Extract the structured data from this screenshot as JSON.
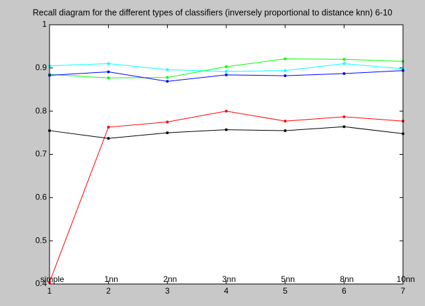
{
  "chart_data": {
    "type": "line",
    "title": "Recall diagram for the different types of classifiers (inversely proportional to distance knn) 6-10",
    "x": [
      1,
      2,
      3,
      4,
      5,
      6,
      7
    ],
    "point_labels": [
      "simple",
      "1nn",
      "2nn",
      "3nn",
      "5nn",
      "8nn",
      "10nn"
    ],
    "series": [
      {
        "color": "#00ffff",
        "values": [
          0.905,
          0.91,
          0.896,
          0.892,
          0.894,
          0.91,
          0.898
        ]
      },
      {
        "color": "#00ff00",
        "values": [
          0.885,
          0.877,
          0.878,
          0.903,
          0.921,
          0.92,
          0.915
        ]
      },
      {
        "color": "#0000ff",
        "values": [
          0.883,
          0.891,
          0.869,
          0.884,
          0.882,
          0.887,
          0.894
        ]
      },
      {
        "color": "#ff0000",
        "values": [
          0.404,
          0.763,
          0.775,
          0.8,
          0.777,
          0.787,
          0.777
        ]
      },
      {
        "color": "#000000",
        "values": [
          0.755,
          0.737,
          0.75,
          0.757,
          0.755,
          0.764,
          0.748
        ]
      }
    ],
    "xlim": [
      1,
      7
    ],
    "xticks": [
      1,
      2,
      3,
      4,
      5,
      6,
      7
    ],
    "ylim": [
      0.4,
      1
    ],
    "yticks": [
      0.4,
      0.5,
      0.6,
      0.7,
      0.8,
      0.9,
      1
    ],
    "grid": false
  }
}
